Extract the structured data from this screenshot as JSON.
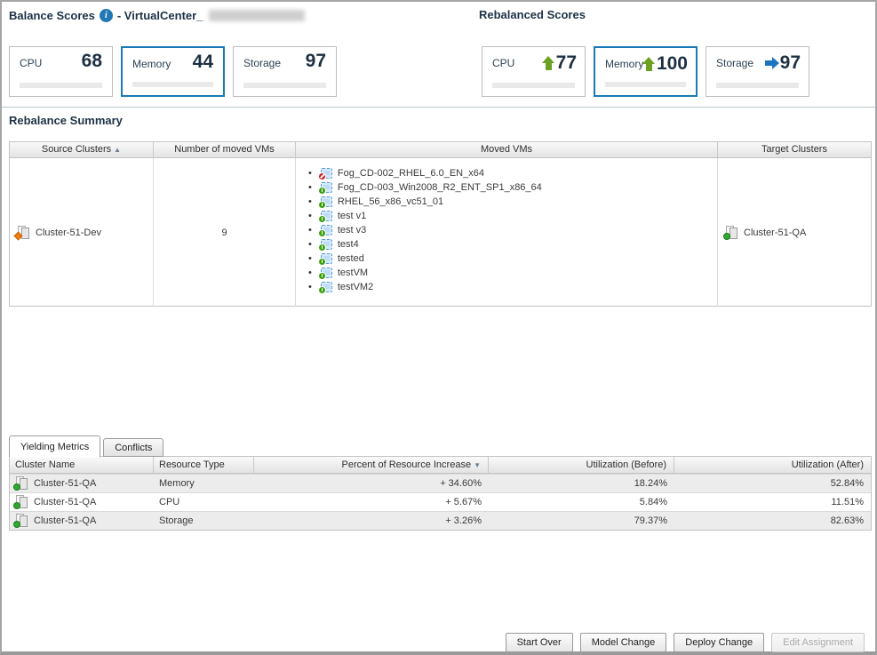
{
  "colors": {
    "score_yellow": "#ffe100",
    "score_orange": "#f7941e",
    "score_green": "#00cc00",
    "arrow_green": "#6aa121",
    "arrow_blue": "#1c75bc",
    "selected_border": "#1a7ab8",
    "info_blue": "#2178b5"
  },
  "header": {
    "balance_title": "Balance Scores",
    "info_glyph": "i",
    "vcenter_label": "- VirtualCenter_",
    "rebalanced_title": "Rebalanced Scores"
  },
  "balance_scores": [
    {
      "label": "CPU",
      "value": "68",
      "pct": 68,
      "color": "#ffe100",
      "state": "default"
    },
    {
      "label": "Memory",
      "value": "44",
      "pct": 44,
      "color": "#f7941e",
      "state": "selected"
    },
    {
      "label": "Storage",
      "value": "97",
      "pct": 97,
      "color": "#00cc00",
      "state": "default"
    }
  ],
  "rebalanced_scores": [
    {
      "label": "CPU",
      "value": "77",
      "pct": 77,
      "color": "#00cc00",
      "trend": "up",
      "state": "default"
    },
    {
      "label": "Memory",
      "value": "100",
      "pct": 100,
      "color": "#00cc00",
      "trend": "up",
      "state": "selected"
    },
    {
      "label": "Storage",
      "value": "97",
      "pct": 97,
      "color": "#00cc00",
      "trend": "right",
      "state": "default"
    }
  ],
  "rebalance_summary": {
    "title": "Rebalance Summary",
    "sort_asc_glyph": "▲",
    "columns": {
      "source": "Source Clusters",
      "count": "Number of moved VMs",
      "moved": "Moved VMs",
      "target": "Target Clusters"
    },
    "row": {
      "source_cluster": "Cluster-51-Dev",
      "source_status": "warning",
      "moved_vm_count": "9",
      "target_cluster": "Cluster-51-QA",
      "target_status": "ok",
      "moved_vms": [
        {
          "name": "Fog_CD-002_RHEL_6.0_EN_x64",
          "power": "off"
        },
        {
          "name": "Fog_CD-003_Win2008_R2_ENT_SP1_x86_64",
          "power": "on"
        },
        {
          "name": "RHEL_56_x86_vc51_01",
          "power": "on"
        },
        {
          "name": "test v1",
          "power": "on"
        },
        {
          "name": "test v3",
          "power": "on"
        },
        {
          "name": "test4",
          "power": "on"
        },
        {
          "name": "tested",
          "power": "on"
        },
        {
          "name": "testVM",
          "power": "on"
        },
        {
          "name": "testVM2",
          "power": "on"
        }
      ]
    }
  },
  "tabs": [
    {
      "label": "Yielding Metrics",
      "state": "active"
    },
    {
      "label": "Conflicts",
      "state": "inactive"
    }
  ],
  "yielding_metrics": {
    "sort_desc_glyph": "▼",
    "columns": {
      "cluster": "Cluster Name",
      "resource": "Resource Type",
      "increase": "Percent of Resource Increase",
      "before": "Utilization (Before)",
      "after": "Utilization (After)"
    },
    "rows": [
      {
        "cluster": "Cluster-51-QA",
        "status": "ok",
        "resource": "Memory",
        "increase": "+ 34.60%",
        "before": "18.24%",
        "after": "52.84%"
      },
      {
        "cluster": "Cluster-51-QA",
        "status": "ok",
        "resource": "CPU",
        "increase": "+ 5.67%",
        "before": "5.84%",
        "after": "11.51%"
      },
      {
        "cluster": "Cluster-51-QA",
        "status": "ok",
        "resource": "Storage",
        "increase": "+ 3.26%",
        "before": "79.37%",
        "after": "82.63%"
      }
    ]
  },
  "buttons": [
    {
      "label": "Start Over",
      "state": "enabled"
    },
    {
      "label": "Model Change",
      "state": "enabled"
    },
    {
      "label": "Deploy Change",
      "state": "enabled"
    },
    {
      "label": "Edit Assignment",
      "state": "disabled"
    }
  ]
}
